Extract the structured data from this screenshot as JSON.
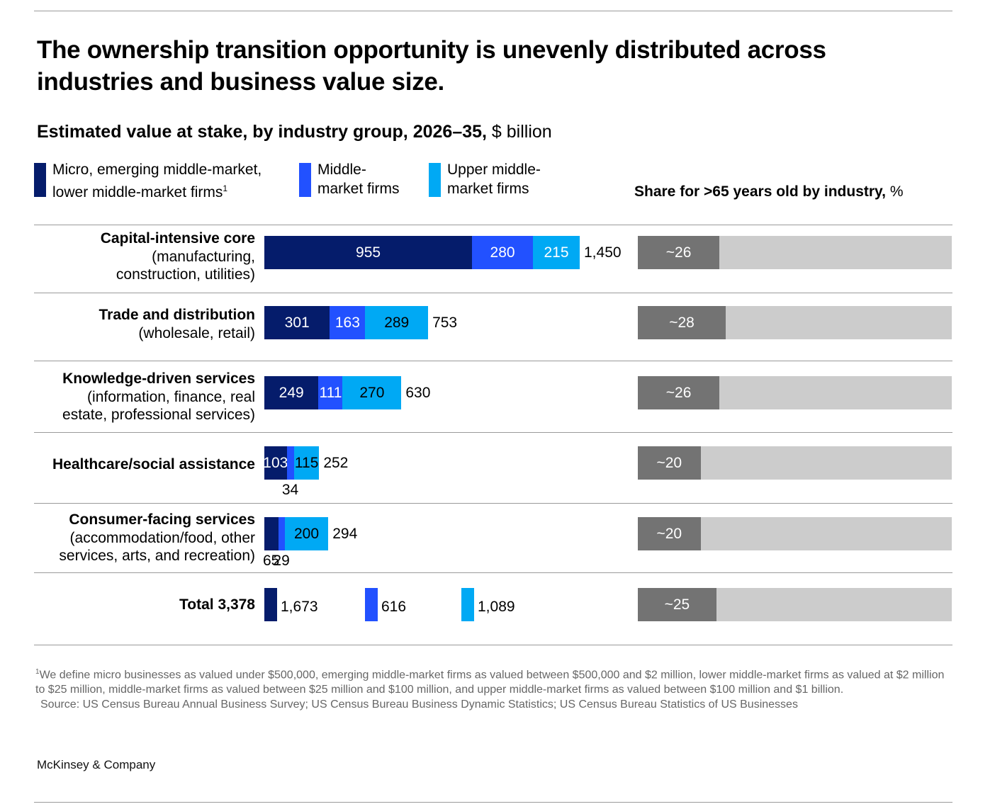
{
  "title": "The ownership transition opportunity is unevenly distributed across industries and business value size.",
  "subtitle_bold": "Estimated value at stake, by industry group, 2026–35,",
  "subtitle_unit": " $ billion",
  "legend": [
    {
      "label": "Micro, emerging middle-market,\nlower middle-market firms",
      "sup": "1",
      "color": "#051c6b"
    },
    {
      "label": "Middle-\nmarket firms",
      "sup": "",
      "color": "#2251ff"
    },
    {
      "label": "Upper middle-\nmarket firms",
      "sup": "",
      "color": "#00a9f4"
    }
  ],
  "share_header_bold": "Share for >65 years old by industry,",
  "share_header_unit": " %",
  "chart_data": {
    "type": "bar",
    "orientation": "horizontal",
    "stacked": true,
    "title": "Estimated value at stake, by industry group, 2026–35, $ billion",
    "categories": [
      {
        "name": "Capital-intensive core",
        "sub": "(manufacturing,\nconstruction, utilities)"
      },
      {
        "name": "Trade and distribution",
        "sub": "(wholesale, retail)"
      },
      {
        "name": "Knowledge-driven services",
        "sub": "(information, finance, real\nestate, professional services)"
      },
      {
        "name": "Healthcare/social assistance",
        "sub": ""
      },
      {
        "name": "Consumer-facing services",
        "sub": "(accommodation/food, other\nservices, arts, and recreation)"
      }
    ],
    "series": [
      {
        "name": "Micro, emerging middle-market, lower middle-market firms",
        "color": "#051c6b",
        "values": [
          955,
          301,
          249,
          103,
          65
        ]
      },
      {
        "name": "Middle-market firms",
        "color": "#2251ff",
        "values": [
          280,
          163,
          111,
          34,
          29
        ]
      },
      {
        "name": "Upper middle-market firms",
        "color": "#00a9f4",
        "values": [
          215,
          289,
          270,
          115,
          200
        ]
      }
    ],
    "labels": [
      [
        "955",
        "280",
        "215"
      ],
      [
        "301",
        "163",
        "289"
      ],
      [
        "249",
        "111",
        "270"
      ],
      [
        "103",
        "34",
        "115"
      ],
      [
        "65",
        "29",
        "200"
      ]
    ],
    "totals": [
      1450,
      753,
      630,
      252,
      294
    ],
    "total_labels": [
      "1,450",
      "753",
      "630",
      "252",
      "294"
    ],
    "share_65": {
      "title": "Share for >65 years old by industry, %",
      "values": [
        26,
        28,
        26,
        20,
        20
      ],
      "labels": [
        "~26",
        "~28",
        "~26",
        "~20",
        "~20"
      ],
      "max": 100
    },
    "grand_total": {
      "label": "Total 3,378",
      "values": [
        1673,
        616,
        1089
      ],
      "value_labels": [
        "1,673",
        "616",
        "1,089"
      ],
      "share_value": 25,
      "share_label": "~25"
    }
  },
  "footnote_marker": "1",
  "footnote": "We define micro businesses as valued under $500,000, emerging middle-market firms as valued between $500,000 and $2 million, lower middle-market firms as valued at $2 million to $25 million, middle-market firms as valued between $25 million and $100 million, and upper middle-market firms as valued between $100 million and $1 billion.",
  "source": "Source: US Census Bureau Annual Business Survey; US Census Bureau Business Dynamic Statistics; US Census Bureau Statistics of US Businesses",
  "brand": "McKinsey & Company"
}
